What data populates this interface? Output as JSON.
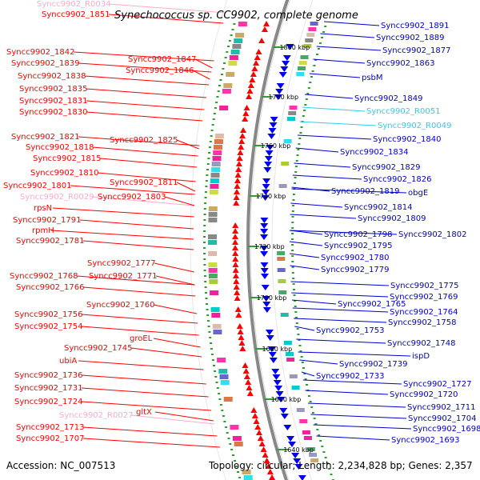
{
  "title": "Synechococcus sp. CC9902, complete genome",
  "accession": "Accession: NC_007513",
  "topology": "Topology: circular; Length: 2,234,828 bp; Genes: 2,357",
  "colors": {
    "left_label": "#ff0000",
    "left_rna_label": "#ffaacc",
    "right_label": "#0000cc",
    "right_rna_label": "#33ccee",
    "backbone": "#888888",
    "tick": "#339933",
    "forward_gene": "#ff0000",
    "reverse_gene": "#0000ee"
  },
  "kbp_ticks": [
    "1800 kbp",
    "1780 kbp",
    "1760 kbp",
    "1740 kbp",
    "1720 kbp",
    "1700 kbp",
    "1680 kbp",
    "1660 kbp",
    "1640 kbp"
  ],
  "left_labels": [
    {
      "text": "Syncc9902_R0034",
      "kind": "rna"
    },
    {
      "text": "Syncc9902_1851",
      "kind": "gene"
    },
    {
      "text": "Syncc9902_1842",
      "kind": "gene"
    },
    {
      "text": "Syncc9902_1847",
      "kind": "gene"
    },
    {
      "text": "Syncc9902_1839",
      "kind": "gene"
    },
    {
      "text": "Syncc9902_1846",
      "kind": "gene"
    },
    {
      "text": "Syncc9902_1838",
      "kind": "gene"
    },
    {
      "text": "Syncc9902_1835",
      "kind": "gene"
    },
    {
      "text": "Syncc9902_1831",
      "kind": "gene"
    },
    {
      "text": "Syncc9902_1830",
      "kind": "gene"
    },
    {
      "text": "Syncc9902_1821",
      "kind": "gene"
    },
    {
      "text": "Syncc9902_1825",
      "kind": "gene"
    },
    {
      "text": "Syncc9902_1818",
      "kind": "gene"
    },
    {
      "text": "Syncc9902_1815",
      "kind": "gene"
    },
    {
      "text": "Syncc9902_1810",
      "kind": "gene"
    },
    {
      "text": "Syncc9902_1811",
      "kind": "gene"
    },
    {
      "text": "Syncc9902_1801",
      "kind": "gene"
    },
    {
      "text": "Syncc9902_R0029",
      "kind": "rna"
    },
    {
      "text": "Syncc9902_1803",
      "kind": "gene"
    },
    {
      "text": "rpsN",
      "kind": "gene"
    },
    {
      "text": "Syncc9902_1791",
      "kind": "gene"
    },
    {
      "text": "rpmH",
      "kind": "gene"
    },
    {
      "text": "Syncc9902_1781",
      "kind": "gene"
    },
    {
      "text": "Syncc9902_1777",
      "kind": "gene"
    },
    {
      "text": "Syncc9902_1768",
      "kind": "gene"
    },
    {
      "text": "Syncc9902_1771",
      "kind": "gene"
    },
    {
      "text": "Syncc9902_1766",
      "kind": "gene"
    },
    {
      "text": "Syncc9902_1760",
      "kind": "gene"
    },
    {
      "text": "Syncc9902_1756",
      "kind": "gene"
    },
    {
      "text": "Syncc9902_1754",
      "kind": "gene"
    },
    {
      "text": "groEL",
      "kind": "gene"
    },
    {
      "text": "Syncc9902_1745",
      "kind": "gene"
    },
    {
      "text": "ubiA",
      "kind": "gene"
    },
    {
      "text": "Syncc9902_1736",
      "kind": "gene"
    },
    {
      "text": "Syncc9902_1731",
      "kind": "gene"
    },
    {
      "text": "Syncc9902_1724",
      "kind": "gene"
    },
    {
      "text": "gltX",
      "kind": "gene"
    },
    {
      "text": "Syncc9902_R0027",
      "kind": "rna"
    },
    {
      "text": "Syncc9902_1713",
      "kind": "gene"
    },
    {
      "text": "Syncc9902_1707",
      "kind": "gene"
    }
  ],
  "right_labels": [
    {
      "text": "Syncc9902_1891",
      "kind": "gene"
    },
    {
      "text": "Syncc9902_1889",
      "kind": "gene"
    },
    {
      "text": "Syncc9902_1877",
      "kind": "gene"
    },
    {
      "text": "Syncc9902_1863",
      "kind": "gene"
    },
    {
      "text": "psbM",
      "kind": "gene"
    },
    {
      "text": "Syncc9902_1849",
      "kind": "gene"
    },
    {
      "text": "Syncc9902_R0051",
      "kind": "rna"
    },
    {
      "text": "Syncc9902_R0049",
      "kind": "rna"
    },
    {
      "text": "Syncc9902_1840",
      "kind": "gene"
    },
    {
      "text": "Syncc9902_1834",
      "kind": "gene"
    },
    {
      "text": "Syncc9902_1829",
      "kind": "gene"
    },
    {
      "text": "Syncc9902_1826",
      "kind": "gene"
    },
    {
      "text": "Syncc9902_1819",
      "kind": "gene"
    },
    {
      "text": "obgE",
      "kind": "gene"
    },
    {
      "text": "Syncc9902_1814",
      "kind": "gene"
    },
    {
      "text": "Syncc9902_1809",
      "kind": "gene"
    },
    {
      "text": "Syncc9902_1798",
      "kind": "gene"
    },
    {
      "text": "Syncc9902_1802",
      "kind": "gene"
    },
    {
      "text": "Syncc9902_1795",
      "kind": "gene"
    },
    {
      "text": "Syncc9902_1780",
      "kind": "gene"
    },
    {
      "text": "Syncc9902_1779",
      "kind": "gene"
    },
    {
      "text": "Syncc9902_1775",
      "kind": "gene"
    },
    {
      "text": "Syncc9902_1769",
      "kind": "gene"
    },
    {
      "text": "Syncc9902_1765",
      "kind": "gene"
    },
    {
      "text": "Syncc9902_1764",
      "kind": "gene"
    },
    {
      "text": "Syncc9902_1758",
      "kind": "gene"
    },
    {
      "text": "Syncc9902_1753",
      "kind": "gene"
    },
    {
      "text": "Syncc9902_1748",
      "kind": "gene"
    },
    {
      "text": "ispD",
      "kind": "gene"
    },
    {
      "text": "Syncc9902_1739",
      "kind": "gene"
    },
    {
      "text": "Syncc9902_1733",
      "kind": "gene"
    },
    {
      "text": "Syncc9902_1727",
      "kind": "gene"
    },
    {
      "text": "Syncc9902_1720",
      "kind": "gene"
    },
    {
      "text": "Syncc9902_1711",
      "kind": "gene"
    },
    {
      "text": "Syncc9902_1704",
      "kind": "gene"
    },
    {
      "text": "Syncc9902_1698",
      "kind": "gene"
    },
    {
      "text": "Syncc9902_1693",
      "kind": "gene"
    }
  ]
}
